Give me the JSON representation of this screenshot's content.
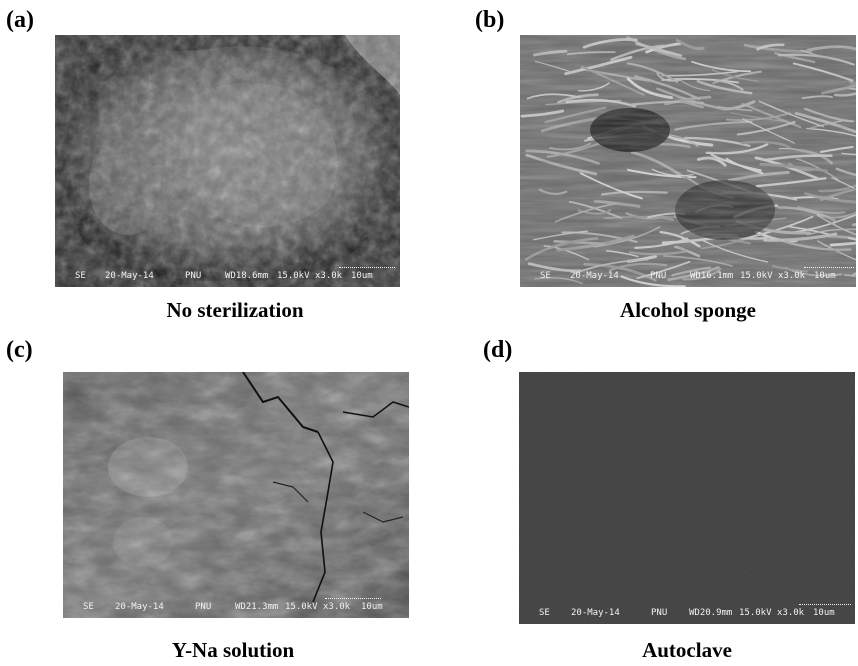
{
  "panels": [
    {
      "id": "a",
      "letter": "(a)",
      "caption": "No sterilization",
      "databar": {
        "detector": "SE",
        "date": "20-May-14",
        "lab": "PNU",
        "wd": "WD18.6mm",
        "kv": "15.0kV",
        "mag": "x3.0k",
        "scale": "10um"
      }
    },
    {
      "id": "b",
      "letter": "(b)",
      "caption": "Alcohol sponge",
      "databar": {
        "detector": "SE",
        "date": "20-May-14",
        "lab": "PNU",
        "wd": "WD16.1mm",
        "kv": "15.0kV",
        "mag": "x3.0k",
        "scale": "10um"
      }
    },
    {
      "id": "c",
      "letter": "(c)",
      "caption": "Y-Na solution",
      "databar": {
        "detector": "SE",
        "date": "20-May-14",
        "lab": "PNU",
        "wd": "WD21.3mm",
        "kv": "15.0kV",
        "mag": "x3.0k",
        "scale": "10um"
      }
    },
    {
      "id": "d",
      "letter": "(d)",
      "caption": "Autoclave",
      "databar": {
        "detector": "SE",
        "date": "20-May-14",
        "lab": "PNU",
        "wd": "WD20.9mm",
        "kv": "15.0kV",
        "mag": "x3.0k",
        "scale": "10um"
      }
    }
  ]
}
